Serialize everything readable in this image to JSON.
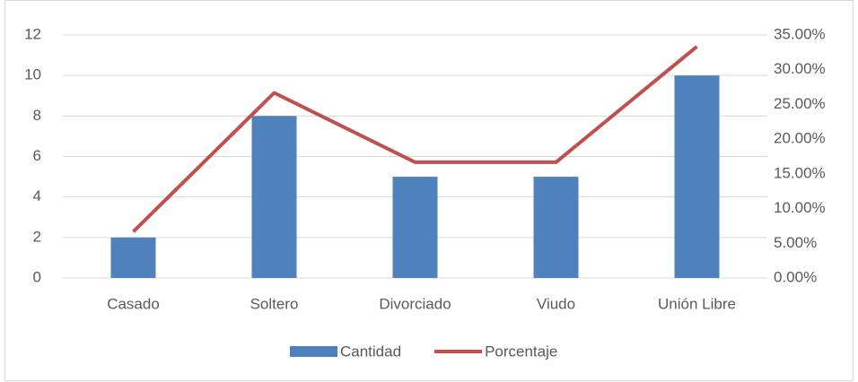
{
  "chart_data": {
    "type": "bar",
    "categories": [
      "Casado",
      "Soltero",
      "Divorciado",
      "Viudo",
      "Unión Libre"
    ],
    "series": [
      {
        "name": "Cantidad",
        "color": "#4f81bd",
        "values": [
          2,
          8,
          5,
          5,
          10
        ]
      },
      {
        "name": "Porcentaje",
        "color": "#c0504d",
        "type": "line",
        "axis": "y2",
        "values": [
          6.67,
          26.67,
          16.67,
          16.67,
          33.33
        ]
      }
    ],
    "ylim": [
      0,
      12
    ],
    "yticks": [
      0,
      2,
      4,
      6,
      8,
      10,
      12
    ],
    "y2lim": [
      0,
      35
    ],
    "y2ticks": [
      {
        "value": 0,
        "label": "0.00%"
      },
      {
        "value": 5,
        "label": "5.00%"
      },
      {
        "value": 10,
        "label": "10.00%"
      },
      {
        "value": 15,
        "label": "15.00%"
      },
      {
        "value": 20,
        "label": "20.00%"
      },
      {
        "value": 25,
        "label": "25.00%"
      },
      {
        "value": 30,
        "label": "30.00%"
      },
      {
        "value": 35,
        "label": "35.00%"
      }
    ],
    "grid": true,
    "legend": "bottom"
  }
}
